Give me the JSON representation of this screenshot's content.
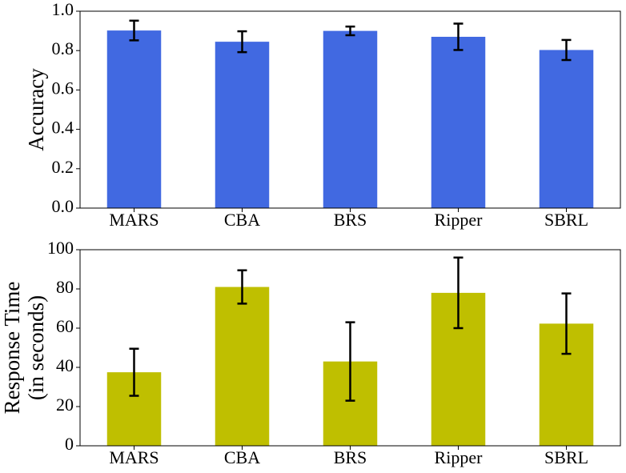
{
  "chart_data": [
    {
      "type": "bar",
      "ylabel": "Accuracy",
      "categories": [
        "MARS",
        "CBA",
        "BRS",
        "Ripper",
        "SBRL"
      ],
      "values": [
        0.902,
        0.845,
        0.9,
        0.87,
        0.803
      ],
      "errors": [
        0.05,
        0.053,
        0.022,
        0.067,
        0.051
      ],
      "color": "#4169e1",
      "ylim": [
        0,
        1.0
      ],
      "yticks": [
        {
          "value": 0,
          "label": "0.0"
        },
        0.2,
        0.4,
        0.6,
        0.8,
        {
          "value": 1,
          "label": "1.0"
        }
      ]
    },
    {
      "type": "bar",
      "ylabel": [
        "Response Time",
        "(in seconds)"
      ],
      "categories": [
        "MARS",
        "CBA",
        "BRS",
        "Ripper",
        "SBRL"
      ],
      "values": [
        37.5,
        81,
        43,
        78,
        62.3
      ],
      "errors": [
        12,
        8.5,
        20,
        18,
        15.4
      ],
      "color": "#bfbf00",
      "ylim": [
        0,
        100
      ],
      "yticks": [
        0,
        20,
        40,
        60,
        80,
        100
      ]
    }
  ]
}
